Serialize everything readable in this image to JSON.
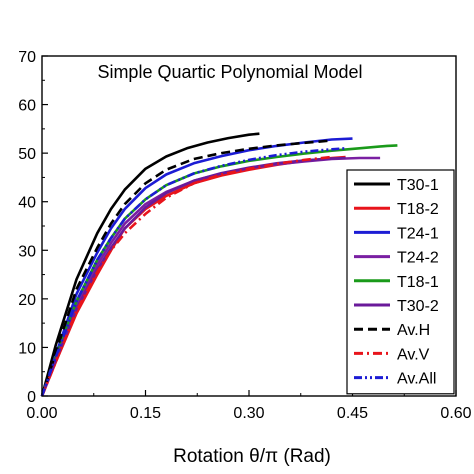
{
  "chart_data": {
    "type": "line",
    "title": "Simple Quartic Polynomial Model",
    "xlabel": "Rotation θ/π (Rad)",
    "ylabel": "",
    "xlim": [
      0,
      0.6
    ],
    "ylim": [
      0,
      70
    ],
    "xticks": [
      "0.00",
      "0.15",
      "0.30",
      "0.45",
      "0.60"
    ],
    "yticks": [
      "0",
      "10",
      "20",
      "30",
      "40",
      "50",
      "60",
      "70"
    ],
    "grid": false,
    "legend_position": "right",
    "series": [
      {
        "name": "T30-1",
        "color": "#000000",
        "dash": "solid",
        "x": [
          0,
          0.02,
          0.05,
          0.08,
          0.1,
          0.12,
          0.15,
          0.18,
          0.21,
          0.24,
          0.27,
          0.3,
          0.315
        ],
        "y": [
          0,
          10.5,
          24,
          33.5,
          38.5,
          42.5,
          46.8,
          49.3,
          51.0,
          52.2,
          53.1,
          53.8,
          54.0
        ]
      },
      {
        "name": "T18-2",
        "color": "#e8141b",
        "dash": "solid",
        "x": [
          0,
          0.02,
          0.05,
          0.08,
          0.1,
          0.12,
          0.15,
          0.18,
          0.22,
          0.26,
          0.3,
          0.34,
          0.38,
          0.42,
          0.44
        ],
        "y": [
          0,
          7,
          17,
          25,
          30,
          34.5,
          38.5,
          41.2,
          43.8,
          45.4,
          46.6,
          47.6,
          48.4,
          49.0,
          49.2
        ]
      },
      {
        "name": "T24-1",
        "color": "#1c1cd4",
        "dash": "solid",
        "x": [
          0,
          0.02,
          0.05,
          0.08,
          0.1,
          0.12,
          0.15,
          0.18,
          0.22,
          0.26,
          0.3,
          0.34,
          0.38,
          0.42,
          0.45
        ],
        "y": [
          0,
          8.5,
          21,
          29.5,
          34.5,
          38.5,
          42.8,
          45.6,
          47.9,
          49.4,
          50.6,
          51.5,
          52.2,
          52.8,
          53.0
        ]
      },
      {
        "name": "T24-2",
        "color": "#7a1fa2",
        "dash": "solid",
        "x": [
          0,
          0.02,
          0.05,
          0.08,
          0.1,
          0.12,
          0.15,
          0.18,
          0.22,
          0.26,
          0.3,
          0.34,
          0.38,
          0.42,
          0.46,
          0.49
        ],
        "y": [
          0,
          7.5,
          18.5,
          27,
          31.5,
          35.5,
          39.5,
          42.0,
          44.3,
          45.8,
          46.9,
          47.7,
          48.3,
          48.8,
          49.0,
          49.0
        ]
      },
      {
        "name": "T18-1",
        "color": "#1a9a1a",
        "dash": "solid",
        "x": [
          0,
          0.02,
          0.05,
          0.08,
          0.1,
          0.12,
          0.15,
          0.18,
          0.22,
          0.26,
          0.3,
          0.34,
          0.38,
          0.42,
          0.46,
          0.5,
          0.515
        ],
        "y": [
          0,
          8,
          19.5,
          28,
          32.5,
          36.5,
          40.5,
          43.4,
          45.8,
          47.3,
          48.4,
          49.2,
          49.9,
          50.5,
          51.0,
          51.5,
          51.6
        ]
      },
      {
        "name": "T30-2",
        "color": "#6a1a9a",
        "dash": "solid",
        "x": [
          0,
          0.02,
          0.05,
          0.08,
          0.1,
          0.12,
          0.15,
          0.18,
          0.22,
          0.26,
          0.3,
          0.34,
          0.38,
          0.42,
          0.44
        ],
        "y": [
          0,
          7.5,
          18,
          26,
          30.5,
          34.5,
          38.8,
          41.8,
          44.3,
          45.9,
          47.0,
          47.9,
          48.5,
          48.9,
          49.0
        ]
      },
      {
        "name": "Av.H",
        "color": "#000000",
        "dash": "dash",
        "x": [
          0,
          0.02,
          0.05,
          0.08,
          0.1,
          0.12,
          0.15,
          0.18,
          0.22,
          0.26,
          0.3,
          0.34,
          0.38,
          0.42
        ],
        "y": [
          0,
          9,
          22,
          30.5,
          35.5,
          39.5,
          43.8,
          46.6,
          48.8,
          50.0,
          50.9,
          51.6,
          52.1,
          52.6
        ]
      },
      {
        "name": "Av.V",
        "color": "#e8141b",
        "dash": "dashdot",
        "x": [
          0,
          0.02,
          0.05,
          0.08,
          0.1,
          0.12,
          0.15,
          0.18,
          0.22,
          0.26,
          0.3,
          0.34,
          0.38,
          0.42
        ],
        "y": [
          0,
          7,
          17.5,
          25.5,
          30,
          33.5,
          37.5,
          40.8,
          43.8,
          45.6,
          46.8,
          47.8,
          48.6,
          49.2
        ]
      },
      {
        "name": "Av.All",
        "color": "#1c1cd4",
        "dash": "dashdotdot",
        "x": [
          0,
          0.02,
          0.05,
          0.08,
          0.1,
          0.12,
          0.15,
          0.18,
          0.22,
          0.26,
          0.3,
          0.34,
          0.38,
          0.42,
          0.44
        ],
        "y": [
          0,
          8,
          19.5,
          28,
          32.5,
          36.5,
          40.5,
          43.4,
          45.8,
          47.4,
          48.6,
          49.6,
          50.3,
          50.8,
          51.0
        ]
      }
    ]
  }
}
